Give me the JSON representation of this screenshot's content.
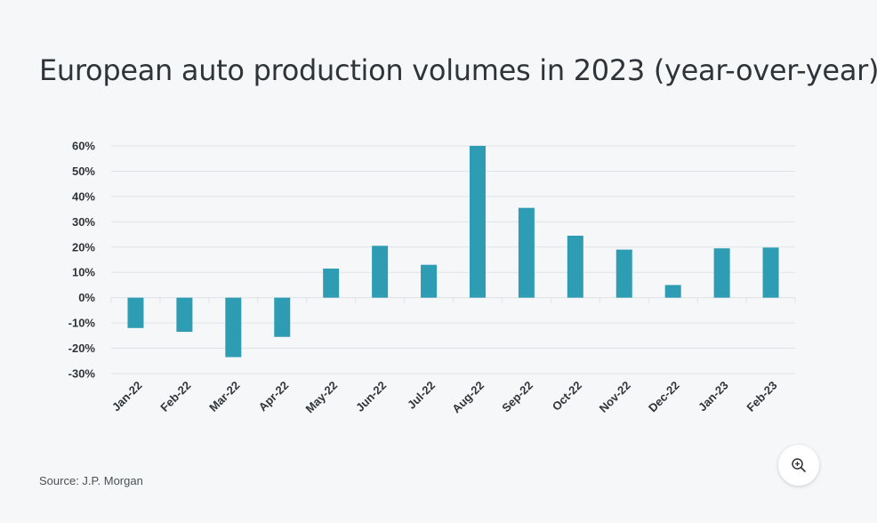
{
  "title": "European auto production volumes in 2023 (year-over-year)",
  "source": "Source: J.P. Morgan",
  "zoom_icon": "zoom-in-icon",
  "colors": {
    "bar": "#2e9db4",
    "grid": "#dfe3e7",
    "background": "#f6f7f9"
  },
  "chart_data": {
    "type": "bar",
    "title": "European auto production volumes in 2023 (year-over-year)",
    "xlabel": "",
    "ylabel": "",
    "categories": [
      "Jan-22",
      "Feb-22",
      "Mar-22",
      "Apr-22",
      "May-22",
      "Jun-22",
      "Jul-22",
      "Aug-22",
      "Sep-22",
      "Oct-22",
      "Nov-22",
      "Dec-22",
      "Jan-23",
      "Feb-23"
    ],
    "values": [
      -12,
      -13.5,
      -23.5,
      -15.5,
      11.5,
      20.5,
      13,
      60,
      35.5,
      24.5,
      19,
      5,
      19.5,
      19.8
    ],
    "ylim": [
      -30,
      60
    ],
    "yticks": [
      60,
      50,
      40,
      30,
      20,
      10,
      0,
      -10,
      -20,
      -30
    ],
    "ytick_labels": [
      "60%",
      "50%",
      "40%",
      "30%",
      "20%",
      "10%",
      "0%",
      "-10%",
      "-20%",
      "-30%"
    ],
    "grid": true,
    "legend": "none"
  }
}
